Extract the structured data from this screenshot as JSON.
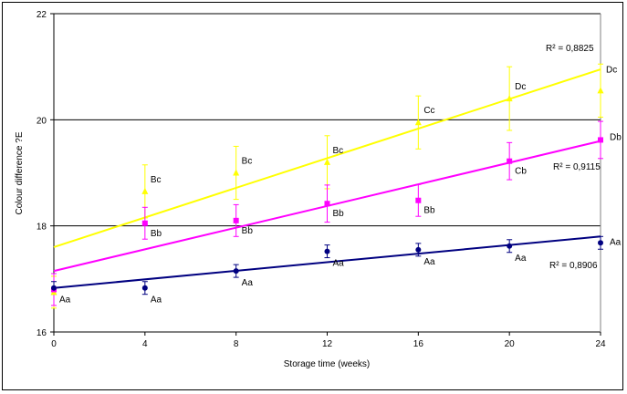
{
  "chart_data": {
    "type": "scatter",
    "xlabel": "Storage time (weeks)",
    "ylabel": "Colour difference ?E",
    "x": [
      0,
      4,
      8,
      12,
      16,
      20,
      24
    ],
    "xlim": [
      0,
      24
    ],
    "ylim": [
      16,
      22
    ],
    "xticks": [
      "0",
      "4",
      "8",
      "12",
      "16",
      "20",
      "24"
    ],
    "yticks": [
      "16",
      "18",
      "20",
      "22"
    ],
    "grid": "horizontal major gridlines",
    "legend": "none",
    "series": [
      {
        "color": "#FFFF00",
        "marker": "triangle",
        "values": [
          16.75,
          18.65,
          19.0,
          19.2,
          19.95,
          20.4,
          20.55
        ],
        "errors": [
          0.3,
          0.5,
          0.5,
          0.5,
          0.5,
          0.6,
          0.5
        ],
        "labels": [
          "",
          "Bc",
          "Bc",
          "Bc",
          "Cc",
          "Dc",
          "Dc"
        ],
        "trendline": [
          17.6,
          20.95
        ],
        "r2": "R² = 0,8825"
      },
      {
        "color": "#FF00FF",
        "marker": "square",
        "values": [
          16.8,
          18.05,
          18.1,
          18.42,
          18.48,
          19.22,
          19.62
        ],
        "errors": [
          0.3,
          0.3,
          0.3,
          0.35,
          0.3,
          0.35,
          0.35
        ],
        "labels": [
          "",
          "Bb",
          "Bb",
          "Bb",
          "Bb",
          "Cb",
          "Db"
        ],
        "trendline": [
          17.15,
          19.6
        ],
        "r2": "R² = 0,9115"
      },
      {
        "color": "#000080",
        "marker": "circle",
        "values": [
          16.83,
          16.83,
          17.15,
          17.52,
          17.55,
          17.62,
          17.68
        ],
        "errors": [
          0.12,
          0.12,
          0.12,
          0.12,
          0.12,
          0.12,
          0.12
        ],
        "labels": [
          "Aa",
          "Aa",
          "Aa",
          "Aa",
          "Aa",
          "Aa",
          "Aa"
        ],
        "trendline": [
          16.83,
          17.8
        ],
        "r2": "R² = 0,8906"
      }
    ]
  }
}
